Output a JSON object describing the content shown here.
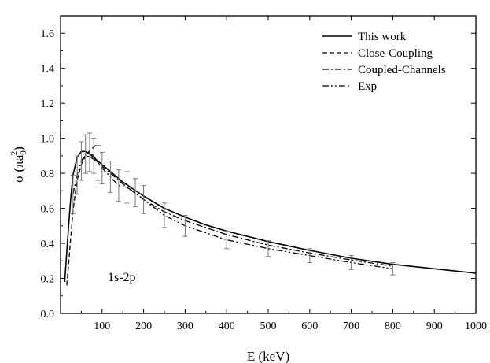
{
  "chart_data": {
    "type": "line",
    "title": "",
    "xlabel": "E (keV)",
    "ylabel_main": "σ (πa",
    "ylabel_sub": "0",
    "ylabel_sup": "2",
    "ylabel_close": ")",
    "xlim": [
      0,
      1000
    ],
    "ylim": [
      0.0,
      1.7
    ],
    "xticks": [
      100,
      200,
      300,
      400,
      500,
      600,
      700,
      800,
      900,
      1000
    ],
    "yticks": [
      0.0,
      0.2,
      0.4,
      0.6,
      0.8,
      1.0,
      1.2,
      1.4,
      1.6
    ],
    "ytick_labels": [
      "0.0",
      "0.2",
      "0.4",
      "0.6",
      "0.8",
      "1.0",
      "1.2",
      "1.4",
      "1.6"
    ],
    "grid": false,
    "legend_position": "top-right",
    "annotation": {
      "text": "1s-2p",
      "x": 110,
      "y": 0.29
    },
    "series": [
      {
        "name": "This work",
        "style": "solid",
        "x": [
          10,
          15,
          20,
          25,
          30,
          40,
          50,
          60,
          70,
          80,
          100,
          120,
          150,
          200,
          250,
          300,
          350,
          400,
          500,
          600,
          700,
          800,
          900,
          1000
        ],
        "y": [
          0.18,
          0.35,
          0.52,
          0.67,
          0.79,
          0.89,
          0.925,
          0.925,
          0.91,
          0.89,
          0.85,
          0.81,
          0.75,
          0.67,
          0.6,
          0.55,
          0.505,
          0.47,
          0.41,
          0.36,
          0.315,
          0.28,
          0.255,
          0.23
        ]
      },
      {
        "name": "Close-Coupling",
        "style": "dashed",
        "x": [
          15,
          20,
          25,
          30,
          35,
          40,
          50,
          60,
          70,
          80,
          90
        ],
        "y": [
          0.16,
          0.3,
          0.45,
          0.58,
          0.68,
          0.76,
          0.85,
          0.9,
          0.93,
          0.95,
          0.97
        ]
      },
      {
        "name": "Coupled-Channels",
        "style": "dashdot",
        "x": [
          50,
          60,
          70,
          80,
          100,
          120,
          150,
          200,
          250,
          300,
          400,
          500,
          600,
          700,
          800
        ],
        "y": [
          0.87,
          0.9,
          0.895,
          0.88,
          0.84,
          0.8,
          0.74,
          0.65,
          0.58,
          0.53,
          0.45,
          0.39,
          0.345,
          0.305,
          0.27
        ]
      },
      {
        "name": "Exp",
        "style": "dashdotdot",
        "x": [
          30,
          40,
          50,
          60,
          70,
          80,
          90,
          100,
          120,
          140,
          160,
          180,
          200,
          250,
          300,
          400,
          500,
          600,
          700,
          800
        ],
        "y": [
          0.68,
          0.79,
          0.87,
          0.91,
          0.92,
          0.9,
          0.86,
          0.83,
          0.78,
          0.73,
          0.72,
          0.69,
          0.65,
          0.56,
          0.5,
          0.42,
          0.37,
          0.33,
          0.29,
          0.255
        ],
        "err": [
          0.11,
          0.11,
          0.11,
          0.11,
          0.11,
          0.1,
          0.1,
          0.09,
          0.09,
          0.09,
          0.09,
          0.08,
          0.08,
          0.07,
          0.06,
          0.05,
          0.045,
          0.04,
          0.04,
          0.035
        ]
      }
    ]
  }
}
